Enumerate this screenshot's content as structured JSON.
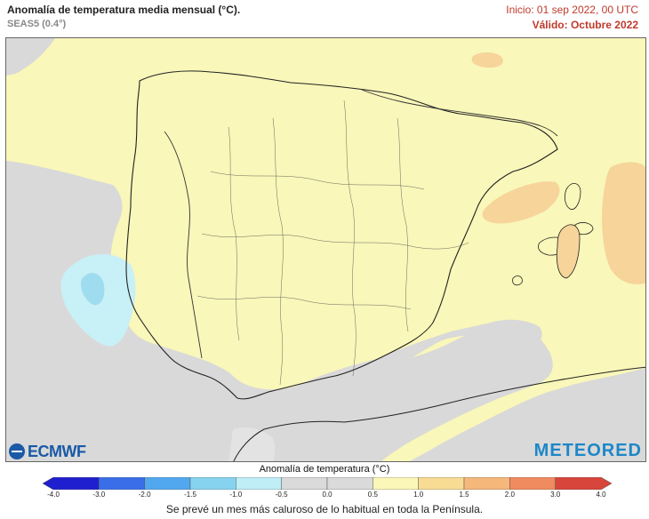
{
  "header": {
    "title": "Anomalía de temperatura media mensual (°C).",
    "subtitle": "SEAS5 (0.4°)",
    "init": "Inicio: 01 sep 2022, 00 UTC",
    "valid": "Válido: Octubre 2022"
  },
  "logos": {
    "left": "ECMWF",
    "right": "METEORED"
  },
  "legend": {
    "title": "Anomalía de temperatura (°C)",
    "ticks": [
      "-4.0",
      "-3.0",
      "-2.0",
      "-1.5",
      "-1.0",
      "-0.5",
      "0.0",
      "0.5",
      "1.0",
      "1.5",
      "2.0",
      "3.0",
      "4.0"
    ],
    "colors": [
      "#1f1fcf",
      "#3a6ee8",
      "#52a8ee",
      "#86d3f0",
      "#bfeef6",
      "#dadada",
      "#dadada",
      "#fbf7b8",
      "#f9dc93",
      "#f5b77a",
      "#f08a5f",
      "#d8453a"
    ]
  },
  "map_colors": {
    "sea": "#d9d9d9",
    "land_anomaly": "#f9f7b9",
    "warm": "#f6d49a",
    "cool_outer": "#c8f0f7",
    "cool_inner": "#9fdcef"
  },
  "caption": "Se prevé un mes más caluroso de lo habitual en toda la Península."
}
